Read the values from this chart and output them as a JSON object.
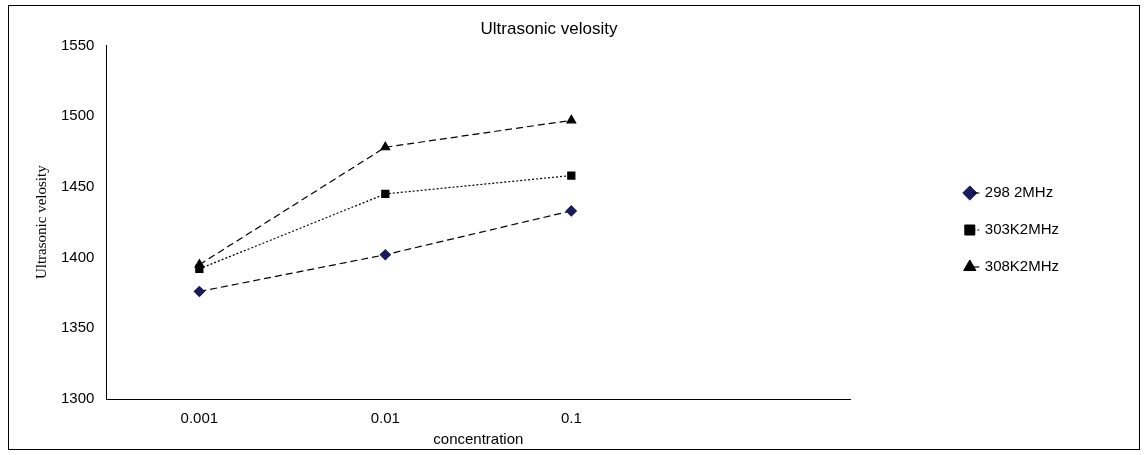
{
  "chart_data": {
    "type": "line",
    "title": "Ultrasonic velosity",
    "xlabel": "concentration",
    "ylabel": "Ultrasonic velosity",
    "categories": [
      "0.001",
      "0.01",
      "0.1",
      null
    ],
    "series": [
      {
        "name": "298 2MHz",
        "color": "#1a1a5e",
        "values": [
          1376,
          1402,
          1433,
          null
        ],
        "marker": "diamond",
        "line_style": "dashed"
      },
      {
        "name": "303K2MHz",
        "color": "#000000",
        "values": [
          1392,
          1445,
          1458,
          null
        ],
        "marker": "square",
        "line_style": "dotted"
      },
      {
        "name": "308K2MHz",
        "color": "#000000",
        "values": [
          1395,
          1478,
          1497,
          null
        ],
        "marker": "triangle",
        "line_style": "dashed"
      }
    ],
    "ylim": [
      1300,
      1550
    ],
    "yticks": [
      1300,
      1350,
      1400,
      1450,
      1500,
      1550
    ],
    "grid": false,
    "legend": "right"
  }
}
